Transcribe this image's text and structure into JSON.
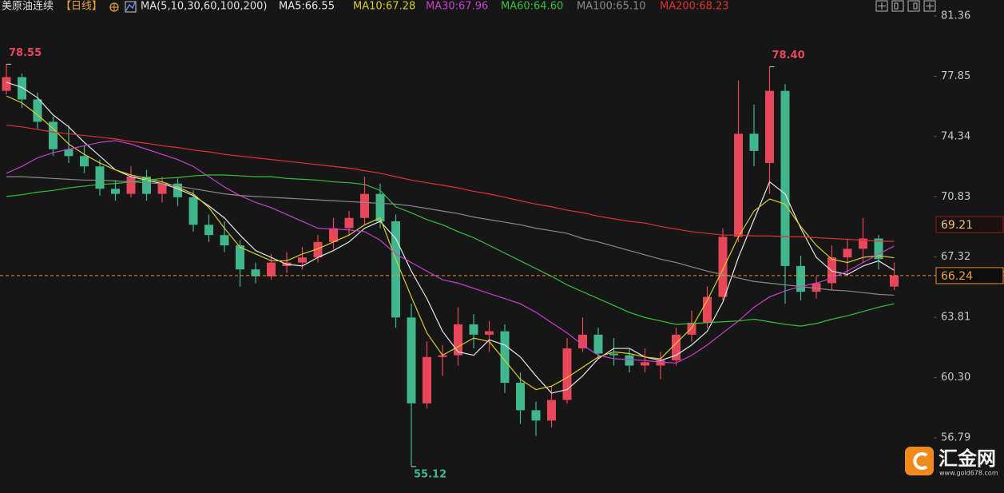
{
  "chart_data": {
    "type": "candlestick",
    "title": "美原油连续",
    "period": "【日线】",
    "indicator": "MA(5,10,30,60,100,200)",
    "up_color": "#e8475a",
    "down_color": "#3fb68b",
    "open": [
      77.0,
      77.8,
      76.5,
      75.2,
      73.6,
      73.2,
      72.6,
      71.3,
      71.0,
      72.0,
      71.0,
      71.6,
      70.8,
      69.2,
      68.6,
      68.0,
      66.6,
      66.2,
      66.8,
      67.0,
      67.3,
      68.2,
      69.0,
      69.6,
      71.0,
      69.4,
      63.8,
      58.8,
      61.5,
      61.6,
      63.4,
      62.8,
      63.0,
      60.0,
      58.4,
      57.8,
      59.0,
      62.0,
      62.8,
      61.7,
      61.6,
      61.0,
      61.0,
      61.3,
      62.8,
      63.5,
      65.0,
      68.5,
      74.5,
      72.8,
      77.0,
      66.8,
      65.3,
      65.8,
      67.3,
      67.8,
      68.4,
      65.6
    ],
    "high": [
      78.55,
      78.0,
      76.9,
      75.5,
      75.0,
      73.8,
      73.0,
      71.8,
      72.6,
      72.4,
      72.0,
      71.9,
      71.2,
      69.8,
      69.4,
      68.3,
      67.0,
      67.5,
      67.6,
      67.9,
      68.6,
      69.6,
      70.0,
      72.0,
      71.6,
      69.8,
      64.6,
      62.4,
      62.2,
      64.4,
      64.0,
      63.6,
      63.4,
      60.6,
      58.9,
      59.8,
      62.6,
      63.8,
      63.2,
      62.6,
      62.0,
      62.0,
      61.8,
      63.2,
      64.2,
      65.6,
      69.0,
      77.6,
      76.2,
      78.4,
      77.4,
      67.4,
      66.2,
      68.0,
      68.4,
      69.6,
      68.6,
      67.0
    ],
    "low": [
      76.8,
      76.0,
      74.8,
      73.2,
      72.8,
      72.2,
      70.9,
      70.6,
      70.8,
      70.6,
      70.5,
      70.3,
      68.8,
      68.2,
      67.6,
      65.6,
      65.8,
      66.0,
      66.4,
      66.6,
      67.0,
      67.8,
      68.6,
      69.2,
      69.0,
      63.2,
      55.12,
      58.5,
      60.4,
      61.0,
      62.0,
      61.8,
      59.4,
      57.6,
      56.9,
      57.4,
      58.8,
      61.8,
      61.4,
      61.0,
      60.6,
      60.6,
      60.2,
      61.0,
      62.4,
      63.2,
      64.8,
      68.2,
      72.6,
      71.0,
      64.6,
      64.8,
      64.9,
      65.4,
      66.2,
      67.0,
      66.6,
      65.4
    ],
    "close": [
      77.8,
      76.5,
      75.2,
      73.6,
      73.2,
      72.6,
      71.3,
      71.0,
      72.0,
      71.0,
      71.6,
      70.8,
      69.2,
      68.6,
      68.0,
      66.6,
      66.2,
      67.0,
      67.0,
      67.3,
      68.2,
      69.0,
      69.6,
      71.0,
      69.4,
      63.8,
      58.8,
      61.5,
      61.6,
      63.4,
      62.8,
      63.0,
      60.0,
      58.4,
      57.8,
      59.0,
      62.0,
      62.8,
      61.7,
      61.6,
      61.0,
      61.2,
      61.3,
      62.8,
      63.5,
      65.0,
      68.5,
      74.5,
      73.5,
      77.0,
      66.8,
      65.3,
      65.8,
      67.3,
      67.8,
      68.4,
      67.2,
      66.24
    ],
    "series": [
      {
        "name": "MA5:66.55",
        "color": "#e6e6e6",
        "values": [
          77.5,
          77.2,
          76.6,
          75.6,
          74.9,
          74.0,
          73.2,
          72.4,
          72.0,
          71.8,
          71.6,
          71.3,
          70.9,
          70.3,
          69.6,
          68.6,
          67.7,
          67.3,
          66.9,
          66.8,
          67.3,
          67.7,
          68.2,
          69.0,
          69.4,
          68.4,
          66.5,
          64.9,
          63.0,
          61.8,
          61.6,
          62.5,
          62.2,
          61.5,
          60.4,
          59.4,
          59.6,
          60.4,
          61.4,
          62.0,
          62.0,
          61.5,
          61.3,
          61.6,
          62.2,
          63.0,
          64.7,
          67.3,
          69.5,
          71.7,
          71.0,
          69.0,
          67.3,
          66.5,
          66.3,
          66.8,
          67.1,
          66.55
        ]
      },
      {
        "name": "MA10:67.28",
        "color": "#d8cc2c",
        "values": [
          76.7,
          76.3,
          75.6,
          74.8,
          73.9,
          73.3,
          72.8,
          72.4,
          72.1,
          71.9,
          71.7,
          71.4,
          71.0,
          70.2,
          69.0,
          67.9,
          67.5,
          67.1,
          67.1,
          67.5,
          67.8,
          68.2,
          68.6,
          69.2,
          69.6,
          67.2,
          65.0,
          62.9,
          61.6,
          62.1,
          62.6,
          62.4,
          61.3,
          60.2,
          59.6,
          59.8,
          60.3,
          60.9,
          61.5,
          61.8,
          61.7,
          61.5,
          61.4,
          62.3,
          63.2,
          64.8,
          66.6,
          68.5,
          70.0,
          70.7,
          70.4,
          69.1,
          68.0,
          67.2,
          67.0,
          67.3,
          67.4,
          67.28
        ]
      },
      {
        "name": "MA30:67.96",
        "color": "#c93fcf",
        "values": [
          72.2,
          72.6,
          73.1,
          73.4,
          73.6,
          73.8,
          74.0,
          74.1,
          73.9,
          73.6,
          73.3,
          73.0,
          72.6,
          72.0,
          71.4,
          70.9,
          70.5,
          70.2,
          69.8,
          69.4,
          69.0,
          68.95,
          68.9,
          68.8,
          68.3,
          67.5,
          67.0,
          66.5,
          66.0,
          65.8,
          65.5,
          65.2,
          64.9,
          64.6,
          64.1,
          63.5,
          62.9,
          62.2,
          61.6,
          61.4,
          61.35,
          61.3,
          61.2,
          61.15,
          61.6,
          62.2,
          62.9,
          63.6,
          64.4,
          65.0,
          65.35,
          65.6,
          65.8,
          66.1,
          66.5,
          67.0,
          67.5,
          67.96
        ]
      },
      {
        "name": "MA60:64.60",
        "color": "#33c23c",
        "values": [
          70.85,
          70.95,
          71.1,
          71.2,
          71.35,
          71.45,
          71.55,
          71.6,
          71.7,
          71.8,
          71.9,
          71.95,
          72.05,
          72.1,
          72.1,
          72.05,
          72.0,
          72.0,
          71.9,
          71.85,
          71.8,
          71.7,
          71.65,
          71.55,
          71.2,
          70.25,
          69.9,
          69.5,
          69.2,
          68.8,
          68.45,
          68.0,
          67.55,
          67.1,
          66.65,
          66.2,
          65.7,
          65.3,
          64.9,
          64.5,
          64.1,
          63.8,
          63.6,
          63.4,
          63.45,
          63.5,
          63.55,
          63.6,
          63.7,
          63.55,
          63.4,
          63.3,
          63.45,
          63.7,
          63.9,
          64.15,
          64.4,
          64.6
        ]
      },
      {
        "name": "MA100:65.10",
        "color": "#8a8a8a",
        "values": [
          72.0,
          72.0,
          71.95,
          71.9,
          71.85,
          71.8,
          71.8,
          71.75,
          71.7,
          71.65,
          71.6,
          71.45,
          71.3,
          71.15,
          71.0,
          70.9,
          70.85,
          70.8,
          70.75,
          70.7,
          70.65,
          70.6,
          70.55,
          70.5,
          70.45,
          70.4,
          70.3,
          70.15,
          70.0,
          69.85,
          69.65,
          69.5,
          69.35,
          69.2,
          69.0,
          68.85,
          68.7,
          68.4,
          68.2,
          67.95,
          67.7,
          67.45,
          67.2,
          67.0,
          66.75,
          66.5,
          66.3,
          66.1,
          65.9,
          65.8,
          65.7,
          65.6,
          65.5,
          65.4,
          65.35,
          65.25,
          65.15,
          65.1
        ]
      },
      {
        "name": "MA200:68.23",
        "color": "#e03232",
        "values": [
          75.0,
          74.9,
          74.75,
          74.6,
          74.5,
          74.4,
          74.3,
          74.2,
          74.05,
          73.95,
          73.8,
          73.7,
          73.55,
          73.45,
          73.3,
          73.2,
          73.1,
          73.0,
          72.9,
          72.8,
          72.7,
          72.6,
          72.5,
          72.35,
          72.2,
          72.0,
          71.8,
          71.65,
          71.5,
          71.35,
          71.15,
          71.0,
          70.8,
          70.6,
          70.4,
          70.25,
          70.05,
          69.9,
          69.7,
          69.55,
          69.4,
          69.3,
          69.1,
          68.95,
          68.8,
          68.7,
          68.6,
          68.6,
          68.55,
          68.55,
          68.5,
          68.5,
          68.45,
          68.4,
          68.35,
          68.3,
          68.25,
          68.23
        ]
      }
    ],
    "ylim": [
      53.58,
      82.29
    ],
    "yticks": [
      81.36,
      77.85,
      74.34,
      70.83,
      67.32,
      63.81,
      {
        "value": 60.3,
        "label": "60.30"
      },
      56.79
    ],
    "annotations": [
      78.55,
      {
        "value": 78.4,
        "label": "78.40"
      },
      55.12
    ],
    "price_tags": [
      69.21,
      66.24
    ],
    "grid": false
  },
  "watermark": {
    "name": "汇金网",
    "url": "www.gold678.com"
  }
}
